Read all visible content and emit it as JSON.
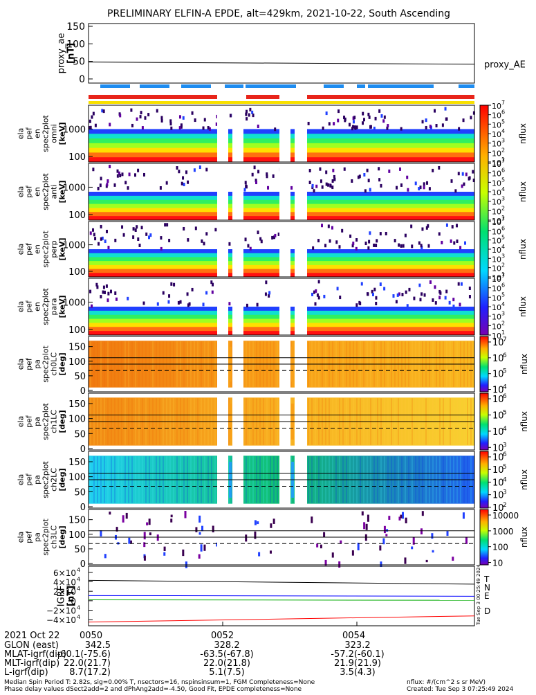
{
  "title": "PRELIMINARY ELFIN-A EPDE, alt=429km, 2021-10-22, South Ascending",
  "chart_data": [
    {
      "type": "line",
      "ylabel": "proxy_ae\n[nT]",
      "yticks": [
        "0",
        "50",
        "100",
        "150"
      ],
      "ylim": [
        -10,
        155
      ],
      "series": [
        {
          "name": "proxy_AE",
          "x": [
            0,
            1
          ],
          "y": [
            48,
            42
          ],
          "color": "#000000"
        }
      ]
    },
    {
      "type": "heatmap",
      "panels": [
        {
          "ylabel": "ela\npef\nen\nspec2plot\nomni\n[keV]",
          "yticks": [
            "100",
            "1000"
          ]
        },
        {
          "ylabel": "ela\npef\nen\nspec2plot\nanti\n[keV]",
          "yticks": [
            "100",
            "1000"
          ]
        },
        {
          "ylabel": "ela\npef\nen\nspec2plot\nperp\n[keV]",
          "yticks": [
            "100",
            "1000"
          ]
        },
        {
          "ylabel": "ela\npef\nen\nspec2plot\npara\n[keV]",
          "yticks": [
            "100",
            "1000"
          ]
        }
      ],
      "colorbar_label": "nflux",
      "colorbar_ticks": [
        "10",
        "10",
        "10",
        "10",
        "10",
        "10",
        "10"
      ],
      "colorbar_exps": [
        "7",
        "6",
        "5",
        "4",
        "3",
        "2",
        "1"
      ]
    },
    {
      "type": "heatmap",
      "panels": [
        {
          "ylabel": "ela\npef\npa\nspec2plot\nch0LC\n[deg]",
          "yticks": [
            "0",
            "50",
            "100",
            "150"
          ],
          "cb_ticks": [
            "10",
            "10",
            "10",
            "10"
          ],
          "cb_exps": [
            "7",
            "6",
            "5",
            "4"
          ]
        },
        {
          "ylabel": "ela\npef\npa\nspec2plot\nch1LC\n[deg]",
          "yticks": [
            "0",
            "50",
            "100",
            "150"
          ],
          "cb_ticks": [
            "10",
            "10",
            "10",
            "10"
          ],
          "cb_exps": [
            "6",
            "5",
            "4",
            "3"
          ]
        },
        {
          "ylabel": "ela\npef\npa\nspec2plot\nch2LC\n[deg]",
          "yticks": [
            "0",
            "50",
            "100",
            "150"
          ],
          "cb_ticks": [
            "10",
            "10",
            "10",
            "10",
            "10"
          ],
          "cb_exps": [
            "6",
            "5",
            "4",
            "3",
            "2"
          ]
        },
        {
          "ylabel": "ela\npef\npa\nspec2plot\nch3LC\n[deg]",
          "yticks": [
            "0",
            "50",
            "100",
            "150"
          ],
          "cb_ticks": [
            "10000",
            "1000",
            "100",
            "10"
          ],
          "cb_exps": [
            "",
            "",
            "",
            ""
          ]
        }
      ],
      "colorbar_label": "nflux"
    },
    {
      "type": "line",
      "ylabel": "IGRF\n[nT]",
      "yticks": [
        "6×10",
        "4×10",
        "2×10",
        "0",
        "−2×10",
        "−4×10"
      ],
      "ytick_exp": "4",
      "series": [
        {
          "name": "T",
          "color": "#000000",
          "y": [
            4.3,
            3.5
          ]
        },
        {
          "name": "N",
          "color": "#0000ff",
          "y": [
            1.1,
            0.95
          ]
        },
        {
          "name": "E",
          "color": "#00aa00",
          "y": [
            0.2,
            0.1
          ]
        },
        {
          "name": "D",
          "color": "#ff0000",
          "y": [
            -4.5,
            -3.2
          ]
        }
      ],
      "side_stamp": "Tue Sep  3 00:25:49 2024"
    }
  ],
  "status_bars": {
    "blue_segments": [
      [
        145,
        188
      ],
      [
        202,
        245
      ],
      [
        262,
        305
      ],
      [
        325,
        352
      ],
      [
        355,
        428
      ],
      [
        468,
        497
      ],
      [
        516,
        528
      ],
      [
        532,
        627
      ],
      [
        663,
        686
      ]
    ],
    "red_segments": [
      [
        128,
        314
      ],
      [
        356,
        404
      ],
      [
        444,
        686
      ]
    ],
    "gaps": [
      [
        314,
        330
      ],
      [
        336,
        352
      ],
      [
        404,
        420
      ],
      [
        426,
        444
      ]
    ]
  },
  "footer": {
    "rows": [
      {
        "label": "2021 Oct 22",
        "v1": "0050",
        "v2": "0052",
        "v3": "0054"
      },
      {
        "label": "GLON (east)",
        "v1": "342.5",
        "v2": "328.2",
        "v3": "323.2"
      },
      {
        "label": "MLAT-igrf(dip)",
        "v1": "-60.1(-75.6)",
        "v2": "-63.5(-67.8)",
        "v3": "-57.2(-60.1)"
      },
      {
        "label": "MLT-igrf(dip)",
        "v1": "22.0(21.7)",
        "v2": "22.0(21.8)",
        "v3": "21.9(21.9)"
      },
      {
        "label": "L-igrf(dip)",
        "v1": "8.7(17.2)",
        "v2": "5.1(7.5)",
        "v3": "3.5(4.3)"
      }
    ],
    "note1": "Median Spin Period T: 2.82s, sig=0.00% T, nsectors=16, nspinsinsum=1, FGM Completeness=None",
    "note2": "Phase delay values dSect2add=2 and dPhAng2add=-4.50, Good Fit, EPDE completeness=None",
    "units": "nflux: #/(cm^2 s sr MeV)",
    "created": "Created: Tue Sep  3 07:25:49 2024"
  }
}
